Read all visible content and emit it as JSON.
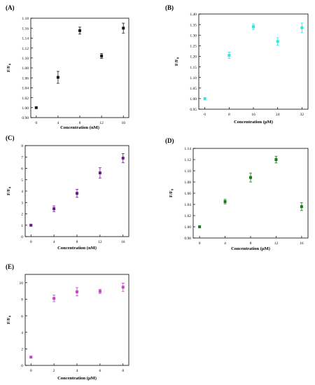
{
  "chart_data": [
    {
      "panel": "(A)",
      "type": "scatter",
      "xlabel": "Concentration (nM)",
      "ylabel": "F/F0",
      "x": [
        0,
        4,
        8,
        12,
        16
      ],
      "x_ticks": [
        "0",
        "4",
        "8",
        "12",
        "16"
      ],
      "xlim": [
        -1,
        17
      ],
      "ylim": [
        0.98,
        1.18
      ],
      "y_ticks": [
        "0.98",
        "1.00",
        "1.02",
        "1.04",
        "1.06",
        "1.08",
        "1.10",
        "1.12",
        "1.14",
        "1.16",
        "1.18"
      ],
      "values": [
        1.0,
        1.061,
        1.155,
        1.104,
        1.16
      ],
      "errors": [
        0.0,
        0.012,
        0.007,
        0.005,
        0.01
      ],
      "color": "#1a1a1a",
      "marker": "square"
    },
    {
      "panel": "(B)",
      "type": "scatter",
      "xlabel": "Concentration (μM)",
      "ylabel": "F/F0",
      "x": [
        0,
        8,
        16,
        24,
        32
      ],
      "x_ticks": [
        "0",
        "8",
        "16",
        "24",
        "32"
      ],
      "xlim": [
        -2,
        34
      ],
      "ylim": [
        0.95,
        1.4
      ],
      "y_ticks": [
        "0.95",
        "1.00",
        "1.05",
        "1.10",
        "1.15",
        "1.20",
        "1.25",
        "1.30",
        "1.35",
        "1.40"
      ],
      "values": [
        1.0,
        1.205,
        1.34,
        1.27,
        1.335
      ],
      "errors": [
        0.0,
        0.015,
        0.013,
        0.018,
        0.022
      ],
      "color": "#2ee6e6",
      "marker": "square"
    },
    {
      "panel": "(C)",
      "type": "scatter",
      "xlabel": "Concentration (nM)",
      "ylabel": "F/F0",
      "x": [
        0,
        4,
        8,
        12,
        16
      ],
      "x_ticks": [
        "0",
        "4",
        "8",
        "12",
        "16"
      ],
      "xlim": [
        -1,
        17
      ],
      "ylim": [
        0,
        8
      ],
      "y_ticks": [
        "0",
        "1",
        "2",
        "3",
        "4",
        "5",
        "6",
        "7",
        "8"
      ],
      "values": [
        1.0,
        2.45,
        3.8,
        5.6,
        6.9
      ],
      "errors": [
        0.05,
        0.25,
        0.35,
        0.45,
        0.4
      ],
      "color": "#6a1b8a",
      "marker": "square"
    },
    {
      "panel": "(D)",
      "type": "scatter",
      "xlabel": "Concentration (μM)",
      "ylabel": "F/F0",
      "x": [
        0,
        4,
        8,
        12,
        16
      ],
      "x_ticks": [
        "0",
        "4",
        "8",
        "12",
        "16"
      ],
      "xlim": [
        -1,
        17
      ],
      "ylim": [
        0.98,
        1.14
      ],
      "y_ticks": [
        "0.98",
        "1.00",
        "1.02",
        "1.04",
        "1.06",
        "1.08",
        "1.10",
        "1.12",
        "1.14"
      ],
      "values": [
        1.0,
        1.045,
        1.088,
        1.12,
        1.036
      ],
      "errors": [
        0.0,
        0.004,
        0.008,
        0.006,
        0.007
      ],
      "color": "#1a7a1a",
      "marker": "square"
    },
    {
      "panel": "(E)",
      "type": "scatter",
      "xlabel": "Concentration (μM)",
      "ylabel": "F/F0",
      "x": [
        0,
        2,
        4,
        6,
        8
      ],
      "x_ticks": [
        "0",
        "2",
        "4",
        "6",
        "8"
      ],
      "xlim": [
        -0.5,
        8.5
      ],
      "ylim": [
        0,
        11
      ],
      "y_ticks": [
        "0",
        "2",
        "4",
        "6",
        "8",
        "10"
      ],
      "values": [
        1.0,
        8.1,
        8.9,
        8.95,
        9.45
      ],
      "errors": [
        0.05,
        0.4,
        0.5,
        0.25,
        0.5
      ],
      "color": "#cc44cc",
      "marker": "square"
    }
  ]
}
